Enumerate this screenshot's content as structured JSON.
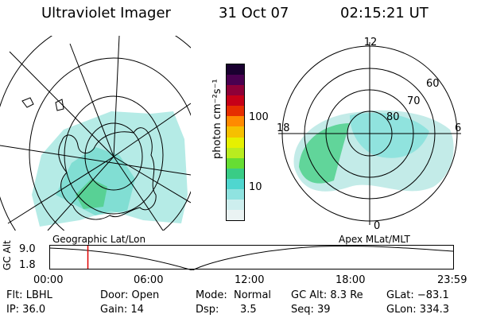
{
  "header": {
    "title": "Ultraviolet Imager",
    "date": "31 Oct 07",
    "time": "02:15:21 UT"
  },
  "left_panel": {
    "label": "Geographic Lat/Lon"
  },
  "right_panel": {
    "label": "Apex MLat/MLT",
    "mlt_labels": {
      "top": "12",
      "left": "18",
      "right": "6",
      "bottom": "0"
    },
    "lat_labels": [
      "60",
      "70",
      "80"
    ]
  },
  "colorbar": {
    "unit_label": "photon cm⁻²s⁻¹",
    "ticks": [
      "100",
      "10"
    ],
    "colors": [
      "#eaf3f3",
      "#cdeeee",
      "#8fe3e0",
      "#4fd6cf",
      "#39cc86",
      "#66dd33",
      "#b9ec1f",
      "#e6f000",
      "#f6c000",
      "#ff8a00",
      "#e62e00",
      "#c60018",
      "#8e0038",
      "#4a0050",
      "#1a0030"
    ]
  },
  "timeline": {
    "axis_label": "GC Alt",
    "y_ticks": [
      "9.0",
      "1.8"
    ],
    "x_ticks": [
      "00:00",
      "06:00",
      "12:00",
      "18:00",
      "23:59"
    ],
    "cursor_time": "02:15",
    "marker_color": "#dd0000"
  },
  "footer": {
    "row1": {
      "filter": "Flt: LBHL",
      "door": "Door: Open",
      "mode_label": "Mode:",
      "mode_value": "Normal",
      "gc_alt": "GC Alt: 8.3 Re",
      "glat": "GLat: −83.1"
    },
    "row2": {
      "ip": "IP: 36.0",
      "gain": "Gain: 14",
      "dsp_label": "Dsp:",
      "dsp_value": "3.5",
      "seq": "Seq: 39",
      "glon": "GLon: 334.3"
    }
  }
}
